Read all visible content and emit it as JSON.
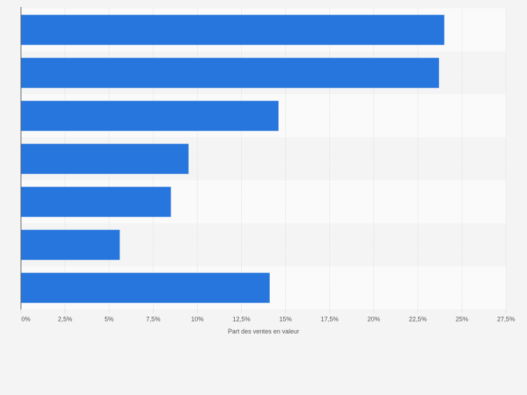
{
  "colors": {
    "background": "#f4f4f4",
    "band_light": "#fafafa",
    "band_dark": "#f4f4f4",
    "bar": "#2776dd",
    "grid": "#dedede",
    "axis": "#555555",
    "tick_text": "#555555"
  },
  "chart_data": {
    "type": "bar",
    "orientation": "horizontal",
    "xlabel": "Part des ventes en valeur",
    "xlim": [
      0,
      27.5
    ],
    "ticks": [
      "0%",
      "2,5%",
      "5%",
      "7,5%",
      "10%",
      "12,5%",
      "15%",
      "17,5%",
      "20%",
      "22,5%",
      "25%",
      "27,5%"
    ],
    "tick_values": [
      0,
      2.5,
      5,
      7.5,
      10,
      12.5,
      15,
      17.5,
      20,
      22.5,
      25,
      27.5
    ],
    "grid": true,
    "values": [
      24.0,
      23.7,
      14.6,
      9.5,
      8.5,
      5.6,
      14.1
    ]
  }
}
